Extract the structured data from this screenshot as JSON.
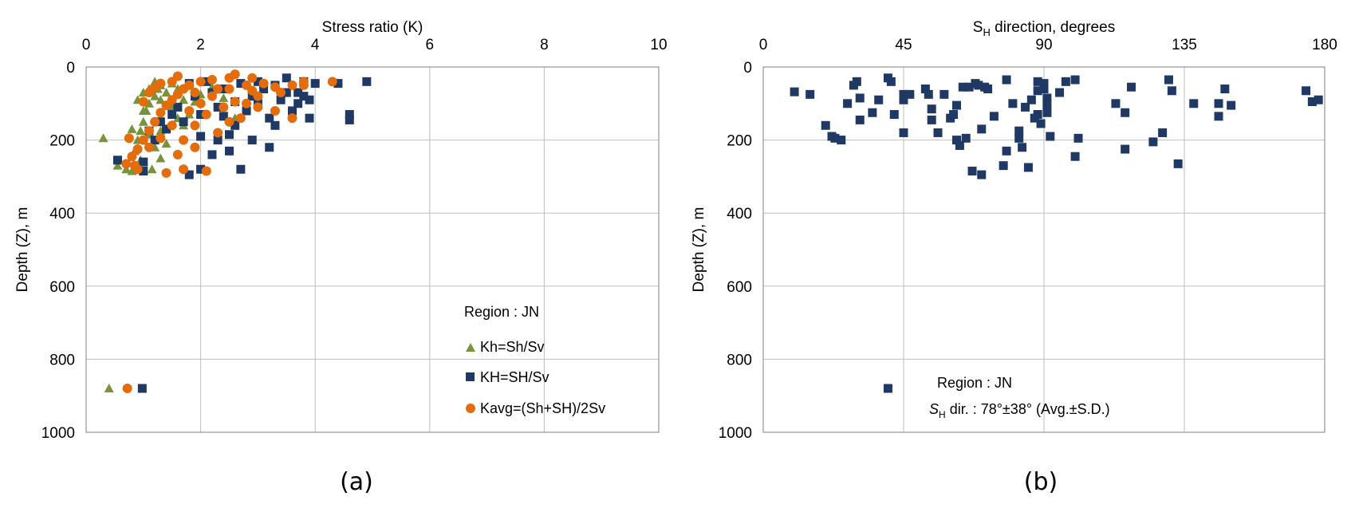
{
  "panels": [
    {
      "label": "(a)"
    },
    {
      "label": "(b)"
    }
  ],
  "colors": {
    "kh": "#77933C",
    "kH": "#1F3864",
    "kavg": "#E46C0A",
    "grid": "#BFBFBF",
    "frame": "#808080"
  },
  "chart_data": [
    {
      "type": "scatter",
      "title": "",
      "xlabel": "Stress ratio (K)",
      "ylabel": "Depth (Z), m",
      "xlim": [
        0,
        10
      ],
      "ylim": [
        0,
        1000
      ],
      "y_inverted": true,
      "x_axis_position": "top",
      "xticks": [
        "0",
        "2",
        "4",
        "6",
        "8",
        "10"
      ],
      "yticks": [
        "0",
        "200",
        "400",
        "600",
        "800",
        "1000"
      ],
      "grid": true,
      "legend": {
        "title": "Region : JN",
        "position": "bottom-right",
        "entries": [
          "Kh=Sh/Sv",
          "KH=SH/Sv",
          "Kavg=(Sh+SH)/2Sv"
        ]
      },
      "series": [
        {
          "name": "Kh=Sh/Sv",
          "marker": "triangle",
          "points": [
            [
              0.3,
              195
            ],
            [
              0.55,
              270
            ],
            [
              0.7,
              280
            ],
            [
              0.8,
              285
            ],
            [
              0.85,
              230
            ],
            [
              0.9,
              200
            ],
            [
              0.95,
              175
            ],
            [
              1.0,
              150
            ],
            [
              1.05,
              120
            ],
            [
              1.1,
              100
            ],
            [
              1.2,
              80
            ],
            [
              1.25,
              60
            ],
            [
              1.3,
              50
            ],
            [
              1.4,
              70
            ],
            [
              1.5,
              45
            ],
            [
              1.0,
              70
            ],
            [
              0.9,
              90
            ],
            [
              1.1,
              60
            ],
            [
              1.2,
              40
            ],
            [
              1.3,
              90
            ],
            [
              1.5,
              110
            ],
            [
              1.6,
              140
            ],
            [
              1.7,
              160
            ],
            [
              1.8,
              130
            ],
            [
              1.9,
              95
            ],
            [
              2.0,
              75
            ],
            [
              2.2,
              55
            ],
            [
              2.4,
              85
            ],
            [
              2.6,
              140
            ],
            [
              1.2,
              220
            ],
            [
              1.3,
              250
            ],
            [
              1.4,
              210
            ],
            [
              0.95,
              255
            ],
            [
              1.1,
              185
            ],
            [
              1.6,
              60
            ],
            [
              1.7,
              90
            ],
            [
              0.8,
              170
            ],
            [
              1.15,
              280
            ],
            [
              1.3,
              175
            ],
            [
              1.0,
              120
            ],
            [
              0.4,
              880
            ]
          ]
        },
        {
          "name": "KH=SH/Sv",
          "marker": "square",
          "points": [
            [
              0.55,
              255
            ],
            [
              1.0,
              285
            ],
            [
              1.2,
              200
            ],
            [
              1.4,
              170
            ],
            [
              1.7,
              150
            ],
            [
              2.0,
              130
            ],
            [
              2.3,
              110
            ],
            [
              2.6,
              95
            ],
            [
              2.9,
              80
            ],
            [
              3.1,
              60
            ],
            [
              3.3,
              50
            ],
            [
              3.5,
              30
            ],
            [
              3.7,
              70
            ],
            [
              3.8,
              40
            ],
            [
              4.0,
              45
            ],
            [
              4.4,
              45
            ],
            [
              4.9,
              40
            ],
            [
              4.6,
              130
            ],
            [
              4.6,
              145
            ],
            [
              3.9,
              140
            ],
            [
              3.6,
              120
            ],
            [
              3.3,
              160
            ],
            [
              3.2,
              220
            ],
            [
              2.9,
              200
            ],
            [
              2.7,
              280
            ],
            [
              2.5,
              230
            ],
            [
              2.2,
              240
            ],
            [
              2.0,
              280
            ],
            [
              1.8,
              295
            ],
            [
              2.6,
              160
            ],
            [
              2.5,
              185
            ],
            [
              2.3,
              200
            ],
            [
              2.0,
              190
            ],
            [
              2.8,
              120
            ],
            [
              3.0,
              100
            ],
            [
              3.4,
              90
            ],
            [
              3.2,
              140
            ],
            [
              2.4,
              60
            ],
            [
              2.2,
              70
            ],
            [
              1.9,
              80
            ],
            [
              1.6,
              110
            ],
            [
              1.5,
              130
            ],
            [
              1.3,
              150
            ],
            [
              1.1,
              175
            ],
            [
              2.7,
              45
            ],
            [
              3.5,
              70
            ],
            [
              3.9,
              90
            ],
            [
              3.0,
              40
            ],
            [
              2.1,
              40
            ],
            [
              1.8,
              45
            ],
            [
              1.0,
              260
            ],
            [
              3.7,
              100
            ],
            [
              3.8,
              80
            ],
            [
              2.4,
              135
            ],
            [
              0.98,
              880
            ]
          ]
        },
        {
          "name": "Kavg=(Sh+SH)/2Sv",
          "marker": "circle",
          "points": [
            [
              0.7,
              265
            ],
            [
              0.8,
              245
            ],
            [
              0.9,
              225
            ],
            [
              0.75,
              195
            ],
            [
              0.85,
              270
            ],
            [
              1.0,
              200
            ],
            [
              1.1,
              175
            ],
            [
              1.2,
              150
            ],
            [
              1.3,
              125
            ],
            [
              1.4,
              105
            ],
            [
              1.5,
              90
            ],
            [
              1.6,
              75
            ],
            [
              1.7,
              60
            ],
            [
              1.8,
              50
            ],
            [
              2.0,
              40
            ],
            [
              2.2,
              35
            ],
            [
              2.5,
              30
            ],
            [
              2.6,
              20
            ],
            [
              2.9,
              30
            ],
            [
              3.1,
              45
            ],
            [
              3.3,
              55
            ],
            [
              3.6,
              50
            ],
            [
              3.8,
              40
            ],
            [
              4.3,
              40
            ],
            [
              3.6,
              140
            ],
            [
              3.3,
              120
            ],
            [
              3.0,
              110
            ],
            [
              2.8,
              100
            ],
            [
              2.6,
              95
            ],
            [
              2.4,
              110
            ],
            [
              2.1,
              130
            ],
            [
              1.9,
              160
            ],
            [
              1.7,
              200
            ],
            [
              1.6,
              240
            ],
            [
              1.4,
              290
            ],
            [
              1.7,
              280
            ],
            [
              2.1,
              285
            ],
            [
              1.9,
              220
            ],
            [
              2.3,
              180
            ],
            [
              2.5,
              150
            ],
            [
              2.7,
              140
            ],
            [
              1.0,
              95
            ],
            [
              1.1,
              70
            ],
            [
              1.2,
              55
            ],
            [
              1.3,
              45
            ],
            [
              1.5,
              40
            ],
            [
              1.9,
              70
            ],
            [
              2.2,
              80
            ],
            [
              2.0,
              100
            ],
            [
              1.8,
              120
            ],
            [
              1.5,
              160
            ],
            [
              1.3,
              195
            ],
            [
              1.1,
              220
            ],
            [
              2.5,
              60
            ],
            [
              3.4,
              70
            ],
            [
              3.8,
              50
            ],
            [
              2.9,
              65
            ],
            [
              2.3,
              60
            ],
            [
              1.6,
              25
            ],
            [
              0.9,
              280
            ],
            [
              2.8,
              50
            ],
            [
              3.0,
              80
            ],
            [
              0.72,
              880
            ]
          ]
        }
      ]
    },
    {
      "type": "scatter",
      "title": "",
      "xlabel": "SH direction, degrees",
      "xlabel_main": "S",
      "xlabel_sub": "H",
      "xlabel_rest": " direction, degrees",
      "ylabel": "Depth (Z), m",
      "xlim": [
        0,
        180
      ],
      "ylim": [
        0,
        1000
      ],
      "y_inverted": true,
      "x_axis_position": "top",
      "xticks": [
        "0",
        "45",
        "90",
        "135",
        "180"
      ],
      "yticks": [
        "0",
        "200",
        "400",
        "600",
        "800",
        "1000"
      ],
      "grid": true,
      "annotation": {
        "line1": "Region : JN",
        "line2_s": "S",
        "line2_sub": "H",
        "line2_rest": " dir.  : 78°±38° (Avg.±S.D.)",
        "position": "bottom-center"
      },
      "series": [
        {
          "name": "",
          "marker": "square",
          "points": [
            [
              10,
              68
            ],
            [
              15,
              75
            ],
            [
              20,
              160
            ],
            [
              22,
              190
            ],
            [
              23,
              195
            ],
            [
              25,
              200
            ],
            [
              27,
              100
            ],
            [
              29,
              50
            ],
            [
              30,
              40
            ],
            [
              31,
              85
            ],
            [
              31,
              145
            ],
            [
              35,
              125
            ],
            [
              37,
              90
            ],
            [
              40,
              30
            ],
            [
              41,
              40
            ],
            [
              42,
              130
            ],
            [
              45,
              75
            ],
            [
              45,
              90
            ],
            [
              45,
              180
            ],
            [
              47,
              75
            ],
            [
              52,
              60
            ],
            [
              53,
              75
            ],
            [
              54,
              115
            ],
            [
              54,
              145
            ],
            [
              56,
              180
            ],
            [
              58,
              75
            ],
            [
              60,
              140
            ],
            [
              61,
              130
            ],
            [
              62,
              105
            ],
            [
              62,
              200
            ],
            [
              63,
              215
            ],
            [
              64,
              55
            ],
            [
              65,
              195
            ],
            [
              66,
              55
            ],
            [
              67,
              285
            ],
            [
              68,
              45
            ],
            [
              69,
              50
            ],
            [
              70,
              295
            ],
            [
              70,
              170
            ],
            [
              71,
              55
            ],
            [
              72,
              60
            ],
            [
              74,
              135
            ],
            [
              77,
              270
            ],
            [
              78,
              35
            ],
            [
              78,
              230
            ],
            [
              80,
              100
            ],
            [
              82,
              175
            ],
            [
              82,
              195
            ],
            [
              83,
              220
            ],
            [
              84,
              110
            ],
            [
              85,
              275
            ],
            [
              86,
              90
            ],
            [
              87,
              140
            ],
            [
              88,
              40
            ],
            [
              88,
              65
            ],
            [
              88,
              130
            ],
            [
              89,
              155
            ],
            [
              90,
              60
            ],
            [
              90,
              45
            ],
            [
              91,
              85
            ],
            [
              91,
              105
            ],
            [
              91,
              125
            ],
            [
              92,
              190
            ],
            [
              95,
              70
            ],
            [
              97,
              40
            ],
            [
              100,
              35
            ],
            [
              100,
              245
            ],
            [
              101,
              195
            ],
            [
              113,
              100
            ],
            [
              116,
              125
            ],
            [
              116,
              225
            ],
            [
              118,
              55
            ],
            [
              125,
              205
            ],
            [
              128,
              180
            ],
            [
              130,
              35
            ],
            [
              131,
              65
            ],
            [
              133,
              265
            ],
            [
              138,
              100
            ],
            [
              146,
              100
            ],
            [
              146,
              135
            ],
            [
              148,
              60
            ],
            [
              150,
              105
            ],
            [
              174,
              65
            ],
            [
              176,
              95
            ],
            [
              178,
              90
            ],
            [
              40,
              880
            ]
          ]
        }
      ]
    }
  ]
}
